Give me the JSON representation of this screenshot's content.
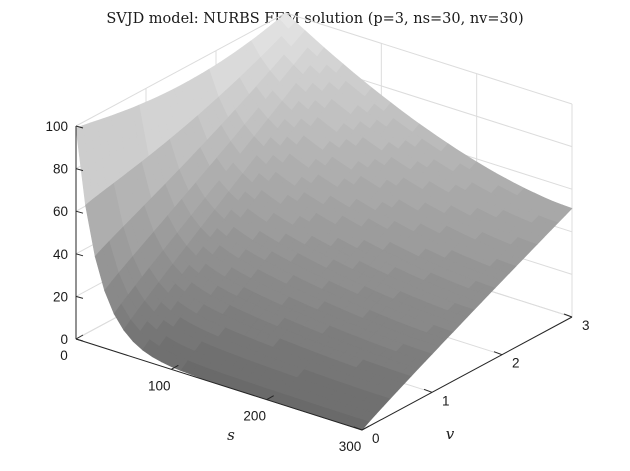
{
  "chart_data": {
    "type": "surface",
    "title": "SVJD model: NURBS FEM solution (p=3, ns=30, nv=30)",
    "xlabel": "s",
    "ylabel": "v",
    "zlabel": "",
    "x_ticks": [
      "0",
      "100",
      "200",
      "300"
    ],
    "y_ticks": [
      "0",
      "1",
      "2",
      "3"
    ],
    "z_ticks": [
      "0",
      "20",
      "40",
      "60",
      "80",
      "100"
    ],
    "xlim": [
      0,
      300
    ],
    "ylim": [
      0,
      3
    ],
    "zlim": [
      0,
      100
    ],
    "grid": true,
    "colormap": "gray",
    "surface_samples": {
      "corners": [
        {
          "s": 0,
          "v": 0,
          "value": 0
        },
        {
          "s": 300,
          "v": 0,
          "value": 0
        },
        {
          "s": 0,
          "v": 3,
          "value": 100
        },
        {
          "s": 300,
          "v": 3,
          "value": 51
        }
      ]
    }
  },
  "colors": {
    "surface_low": "#6a6a6a",
    "surface_high": "#e6e6e6",
    "axis": "#262626",
    "grid": "#dcdcdc"
  }
}
